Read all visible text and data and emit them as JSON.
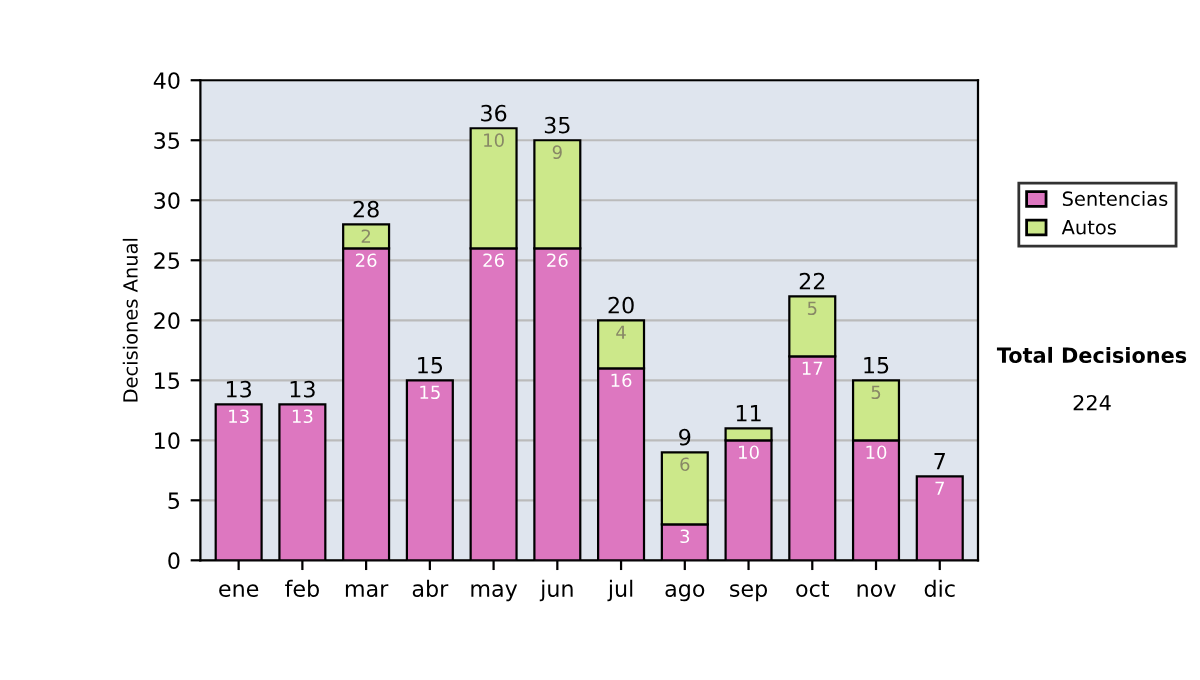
{
  "chart_data": {
    "type": "bar",
    "stacked": true,
    "ylabel": "Decisiones Anual",
    "categories": [
      "ene",
      "feb",
      "mar",
      "abr",
      "may",
      "jun",
      "jul",
      "ago",
      "sep",
      "oct",
      "nov",
      "dic"
    ],
    "series": [
      {
        "name": "Sentencias",
        "color": "#dd77c0",
        "values": [
          13,
          13,
          26,
          15,
          26,
          26,
          16,
          3,
          10,
          17,
          10,
          7
        ],
        "value_labels": [
          "13",
          "13",
          "26",
          "15",
          "26",
          "26",
          "16",
          "3",
          "10",
          "17",
          "10",
          "7"
        ]
      },
      {
        "name": "Autos",
        "color": "#cce88a",
        "values": [
          0,
          0,
          2,
          0,
          10,
          9,
          4,
          6,
          1,
          5,
          5,
          0
        ],
        "value_labels": [
          null,
          null,
          "2",
          null,
          "10",
          "9",
          "4",
          "6",
          null,
          "5",
          "5",
          null
        ]
      }
    ],
    "totals": [
      "13",
      "13",
      "28",
      "15",
      "36",
      "35",
      "20",
      "9",
      "11",
      "22",
      "15",
      "7"
    ],
    "ylim": [
      0,
      40
    ],
    "yticks": [
      0,
      5,
      10,
      15,
      20,
      25,
      30,
      35,
      40
    ],
    "grid": "y",
    "legend": "right",
    "annotations": [
      "Total Decisiones",
      "224"
    ]
  }
}
